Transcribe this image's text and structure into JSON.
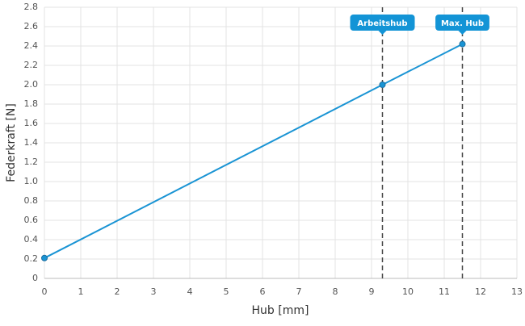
{
  "chart_data": {
    "type": "line",
    "xlabel": "Hub [mm]",
    "ylabel": "Federkraft [N]",
    "x": [
      0,
      9.3,
      11.5
    ],
    "series": [
      {
        "name": "Federkraft",
        "color": "#1a94d4",
        "values": [
          0.21,
          2.0,
          2.42
        ]
      }
    ],
    "xlim": [
      0,
      13
    ],
    "xticks": [
      0,
      1,
      2,
      3,
      4,
      5,
      6,
      7,
      8,
      9,
      10,
      11,
      12,
      13
    ],
    "ylim": [
      0,
      2.8
    ],
    "yticks": [
      0,
      0.2,
      0.4,
      0.6,
      0.8,
      {
        "value": 1,
        "label": "1.0"
      },
      1.2,
      1.4,
      1.6,
      1.8,
      {
        "value": 2,
        "label": "2.0"
      },
      2.2,
      2.4,
      2.6,
      2.8
    ],
    "grid": true,
    "annotations": [
      {
        "x": 9.3,
        "label": "Arbeitshub"
      },
      {
        "x": 11.5,
        "label": "Max. Hub"
      }
    ]
  }
}
